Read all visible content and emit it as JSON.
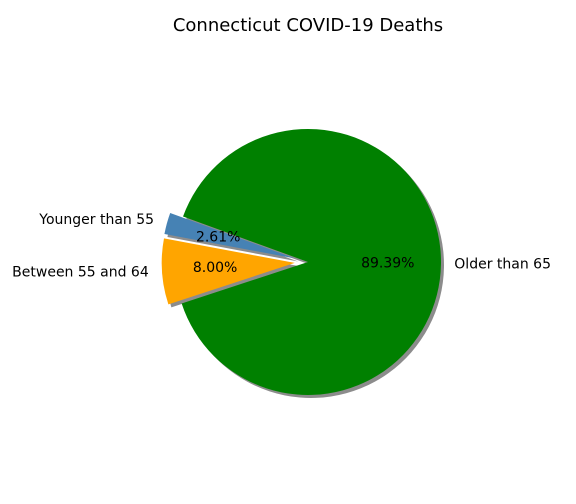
{
  "chart_data": {
    "type": "pie",
    "title": "Connecticut COVID-19 Deaths",
    "slices": [
      {
        "label": "Younger than 55",
        "value": 2.61,
        "pct_label": "2.61%",
        "color": "#4682b4",
        "exploded": true
      },
      {
        "label": "Between 55 and 64",
        "value": 8.0,
        "pct_label": "8.00%",
        "color": "#ffa500",
        "exploded": true
      },
      {
        "label": "Older than 65",
        "value": 89.39,
        "pct_label": "89.39%",
        "color": "#008000",
        "exploded": false
      }
    ],
    "shadow": true
  }
}
